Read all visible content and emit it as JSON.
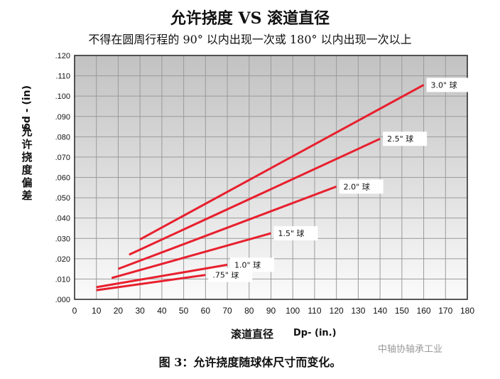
{
  "title": "允许挠度 VS 滚道直径",
  "subtitle": "不得在圆周行程的 90° 以内出现一次或 180° 以内出现一次以上",
  "caption": "图 3：允许挠度随球体尺寸而变化。",
  "watermark": "中轴协轴承工业",
  "chart_data": {
    "type": "line",
    "title": "允许挠度 VS 滚道直径",
    "xlabel": "滚道直径",
    "xunit": "Dp- (in.)",
    "ylabel": "允许挠度偏差",
    "ysymbol": "δd - (in)",
    "xlim": [
      0,
      180
    ],
    "ylim": [
      0,
      0.12
    ],
    "xticks": [
      "0",
      "10",
      "20",
      "30",
      "40",
      "50",
      "60",
      "70",
      "80",
      "90",
      "100",
      "110",
      "120",
      "130",
      "140",
      "150",
      "160",
      "170",
      "180"
    ],
    "yticks": [
      ".000",
      ".010",
      ".020",
      ".030",
      ".040",
      ".050",
      ".060",
      ".070",
      ".080",
      ".090",
      ".100",
      ".110",
      ".120"
    ],
    "grid": true,
    "line_color": "#e8202e",
    "series": [
      {
        "name": ".75\" 球",
        "x": [
          10,
          60
        ],
        "y": [
          0.0045,
          0.012
        ]
      },
      {
        "name": "1.0\" 球",
        "x": [
          10,
          70
        ],
        "y": [
          0.006,
          0.017
        ]
      },
      {
        "name": "1.5\" 球",
        "x": [
          17,
          90
        ],
        "y": [
          0.0105,
          0.0325
        ]
      },
      {
        "name": "2.0\" 球",
        "x": [
          20,
          120
        ],
        "y": [
          0.015,
          0.0555
        ]
      },
      {
        "name": "2.5\" 球",
        "x": [
          25,
          140
        ],
        "y": [
          0.022,
          0.079
        ]
      },
      {
        "name": "3.0\" 球",
        "x": [
          30,
          160
        ],
        "y": [
          0.0295,
          0.1055
        ]
      }
    ]
  }
}
